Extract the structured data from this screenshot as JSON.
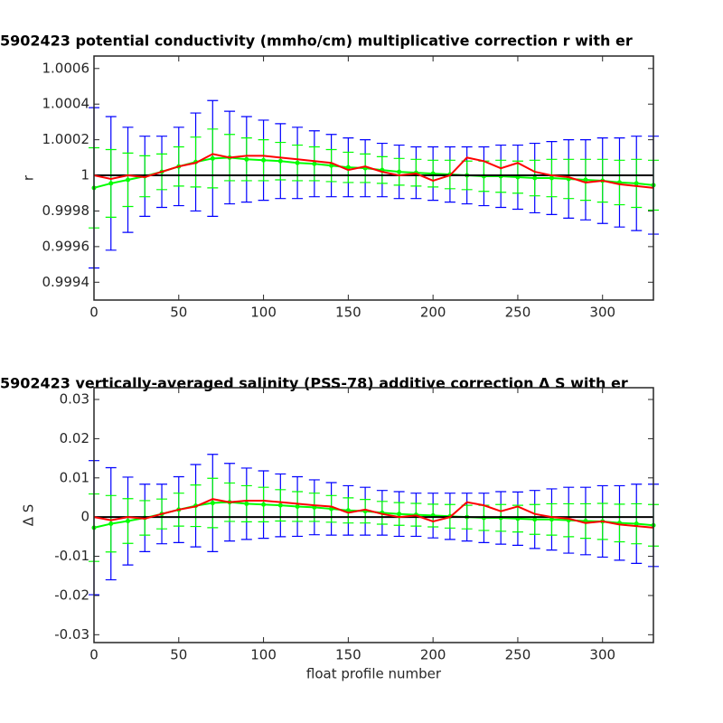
{
  "chart_data": [
    {
      "type": "errorbar",
      "title": "5902423 potential conductivity (mmho/cm) multiplicative correction r with er",
      "ylabel": "r",
      "x": [
        0,
        10,
        20,
        30,
        40,
        50,
        60,
        70,
        80,
        90,
        100,
        110,
        120,
        130,
        140,
        150,
        160,
        170,
        180,
        190,
        200,
        210,
        220,
        230,
        240,
        250,
        260,
        270,
        280,
        290,
        300,
        310,
        320,
        330
      ],
      "series": [
        {
          "color": "#0000ff",
          "line": false,
          "values": [
            0.99993,
            0.999955,
            0.999975,
            0.999995,
            1.00002,
            1.00005,
            1.000075,
            1.000095,
            1.0001,
            1.00009,
            1.000085,
            1.00008,
            1.00007,
            1.000065,
            1.000055,
            1.000045,
            1.00004,
            1.00003,
            1.00002,
            1.000015,
            1.00001,
            1.000005,
            1,
            0.999995,
            0.999995,
            0.99999,
            0.999985,
            0.999985,
            0.99998,
            0.999975,
            0.99997,
            0.99996,
            0.999955,
            0.999945
          ],
          "errors": [
            0.00045,
            0.000375,
            0.000295,
            0.000225,
            0.0002,
            0.00022,
            0.000275,
            0.000325,
            0.00026,
            0.00024,
            0.000225,
            0.00021,
            0.0002,
            0.000185,
            0.000175,
            0.000165,
            0.00016,
            0.00015,
            0.00015,
            0.000145,
            0.00015,
            0.000155,
            0.00016,
            0.000165,
            0.000175,
            0.00018,
            0.000195,
            0.000205,
            0.00022,
            0.000225,
            0.00024,
            0.00025,
            0.000265,
            0.000275
          ]
        },
        {
          "color": "#00ff00",
          "line": true,
          "values": [
            0.99993,
            0.999955,
            0.999975,
            0.999995,
            1.00002,
            1.00005,
            1.000075,
            1.000095,
            1.0001,
            1.00009,
            1.000085,
            1.00008,
            1.00007,
            1.000065,
            1.000055,
            1.000045,
            1.00004,
            1.00003,
            1.00002,
            1.000015,
            1.00001,
            1.000005,
            1,
            0.999995,
            0.999995,
            0.99999,
            0.999985,
            0.999985,
            0.99998,
            0.999975,
            0.99997,
            0.99996,
            0.999955,
            0.999945
          ],
          "errors": [
            0.000225,
            0.00019,
            0.00015,
            0.000115,
            0.0001,
            0.00011,
            0.00014,
            0.000165,
            0.00013,
            0.00012,
            0.000115,
            0.000105,
            0.0001,
            9.5e-05,
            9e-05,
            8.5e-05,
            8e-05,
            7.5e-05,
            7.5e-05,
            7.5e-05,
            7.5e-05,
            8e-05,
            8e-05,
            8.5e-05,
            9e-05,
            9e-05,
            0.0001,
            0.000105,
            0.00011,
            0.000115,
            0.00012,
            0.000125,
            0.000135,
            0.00014
          ]
        },
        {
          "color": "#ff0000",
          "line": true,
          "values": [
            1,
            0.99998,
            1,
            0.99999,
            1.00002,
            1.00005,
            1.00007,
            1.00012,
            1.0001,
            1.00011,
            1.00011,
            1.0001,
            1.00009,
            1.00008,
            1.00007,
            1.00003,
            1.00005,
            1.00002,
            1,
            1.00001,
            0.99997,
            1,
            1.0001,
            1.00008,
            1.00004,
            1.00007,
            1.00002,
            1,
            0.99999,
            0.99996,
            0.99997,
            0.99995,
            0.99994,
            0.99993
          ]
        }
      ],
      "hline": 1,
      "hline_color": "#000000",
      "xlim": [
        0,
        330
      ],
      "xticks": [
        0,
        50,
        100,
        150,
        200,
        250,
        300
      ],
      "ylim": [
        0.9993,
        1.00067
      ],
      "yticks": [
        0.9994,
        0.9996,
        0.9998,
        1,
        1.0002,
        1.0004,
        1.0006
      ]
    },
    {
      "type": "errorbar",
      "title": "5902423 vertically-averaged salinity (PSS-78) additive correction Δ S with er",
      "ylabel": "Δ S",
      "xlabel": "float profile number",
      "x": [
        0,
        10,
        20,
        30,
        40,
        50,
        60,
        70,
        80,
        90,
        100,
        110,
        120,
        130,
        140,
        150,
        160,
        170,
        180,
        190,
        200,
        210,
        220,
        230,
        240,
        250,
        260,
        270,
        280,
        290,
        300,
        310,
        320,
        330
      ],
      "series": [
        {
          "color": "#0000ff",
          "line": false,
          "values": [
            -0.0027,
            -0.0017,
            -0.001,
            -0.0002,
            0.0008,
            0.0019,
            0.0029,
            0.0036,
            0.0038,
            0.0034,
            0.0032,
            0.003,
            0.0027,
            0.0025,
            0.0021,
            0.0017,
            0.0015,
            0.0011,
            0.0008,
            0.0006,
            0.0004,
            0.0002,
            0,
            -0.0002,
            -0.0002,
            -0.0004,
            -0.0006,
            -0.0006,
            -0.0008,
            -0.001,
            -0.0011,
            -0.0015,
            -0.0017,
            -0.0021
          ],
          "errors": [
            0.0171,
            0.0143,
            0.0112,
            0.0086,
            0.0076,
            0.0084,
            0.0105,
            0.0124,
            0.0099,
            0.0091,
            0.0086,
            0.008,
            0.0076,
            0.007,
            0.0067,
            0.0063,
            0.0061,
            0.0057,
            0.0057,
            0.0055,
            0.0057,
            0.0059,
            0.0061,
            0.0063,
            0.0067,
            0.0068,
            0.0074,
            0.0078,
            0.0084,
            0.0086,
            0.0091,
            0.0095,
            0.0101,
            0.0105
          ]
        },
        {
          "color": "#00ff00",
          "line": true,
          "values": [
            -0.0027,
            -0.0017,
            -0.001,
            -0.0002,
            0.0008,
            0.0019,
            0.0029,
            0.0036,
            0.0038,
            0.0034,
            0.0032,
            0.003,
            0.0027,
            0.0025,
            0.0021,
            0.0017,
            0.0015,
            0.0011,
            0.0008,
            0.0006,
            0.0004,
            0.0002,
            0,
            -0.0002,
            -0.0002,
            -0.0004,
            -0.0006,
            -0.0006,
            -0.0008,
            -0.001,
            -0.0011,
            -0.0015,
            -0.0017,
            -0.0021
          ],
          "errors": [
            0.0086,
            0.0072,
            0.0057,
            0.0044,
            0.0038,
            0.0042,
            0.0053,
            0.0063,
            0.0049,
            0.0046,
            0.0044,
            0.004,
            0.0038,
            0.0036,
            0.0034,
            0.0032,
            0.003,
            0.0029,
            0.0029,
            0.0029,
            0.0029,
            0.003,
            0.003,
            0.0032,
            0.0034,
            0.0034,
            0.0038,
            0.004,
            0.0042,
            0.0044,
            0.0046,
            0.0048,
            0.0051,
            0.0053
          ]
        },
        {
          "color": "#ff0000",
          "line": true,
          "values": [
            0,
            -0.0008,
            0,
            -0.0004,
            0.0008,
            0.0019,
            0.0027,
            0.0046,
            0.0038,
            0.0042,
            0.0042,
            0.0038,
            0.0034,
            0.003,
            0.0027,
            0.0011,
            0.0019,
            0.0008,
            0,
            0.0004,
            -0.0011,
            0,
            0.0038,
            0.003,
            0.0015,
            0.0027,
            0.0008,
            0,
            -0.0004,
            -0.0015,
            -0.0011,
            -0.0019,
            -0.0023,
            -0.0027
          ]
        }
      ],
      "hline": 0,
      "hline_color": "#000000",
      "xlim": [
        0,
        330
      ],
      "xticks": [
        0,
        50,
        100,
        150,
        200,
        250,
        300
      ],
      "ylim": [
        -0.032,
        0.033
      ],
      "yticks": [
        -0.03,
        -0.02,
        -0.01,
        0,
        0.01,
        0.02,
        0.03
      ]
    }
  ]
}
